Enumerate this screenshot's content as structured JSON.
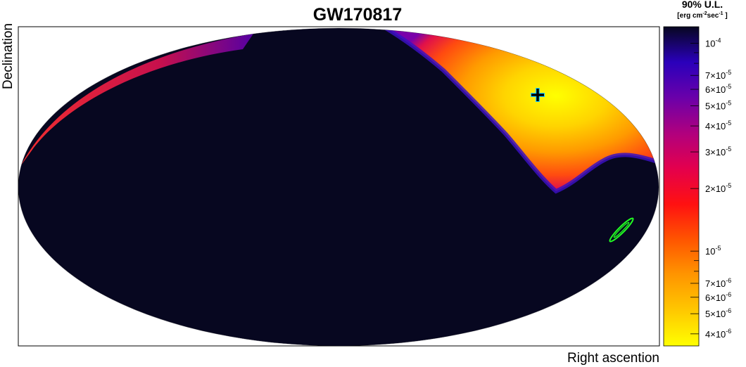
{
  "chart_data": {
    "type": "heatmap",
    "projection": "hammer-aitoff",
    "title": "GW170817",
    "xlabel": "Right ascention",
    "ylabel": "Declination",
    "colorbar": {
      "title": "90% U.L.",
      "unit_text": "[erg cm",
      "unit_exp1": "-2",
      "unit_mid": "sec",
      "unit_exp2": "-1",
      "unit_end": " ]",
      "scale": "log",
      "range": [
        3.5e-06,
        0.00012
      ],
      "colors": [
        "#ffff00",
        "#ffc800",
        "#ff9600",
        "#ff5500",
        "#ff1111",
        "#e4004d",
        "#b0007e",
        "#6a00aa",
        "#2a00bb",
        "#070720"
      ],
      "ticks": [
        {
          "value": 0.0001,
          "mantissa": "10",
          "exp": "-4",
          "labeled": true
        },
        {
          "value": 9e-05,
          "labeled": false
        },
        {
          "value": 8e-05,
          "labeled": false
        },
        {
          "value": 7e-05,
          "mantissa": "7×10",
          "exp": "-5",
          "labeled": true
        },
        {
          "value": 6e-05,
          "mantissa": "6×10",
          "exp": "-5",
          "labeled": true
        },
        {
          "value": 5e-05,
          "mantissa": "5×10",
          "exp": "-5",
          "labeled": true
        },
        {
          "value": 4e-05,
          "mantissa": "4×10",
          "exp": "-5",
          "labeled": true
        },
        {
          "value": 3e-05,
          "mantissa": "3×10",
          "exp": "-5",
          "labeled": true
        },
        {
          "value": 2e-05,
          "mantissa": "2×10",
          "exp": "-5",
          "labeled": true
        },
        {
          "value": 1e-05,
          "mantissa": "10",
          "exp": "-5",
          "labeled": true
        },
        {
          "value": 9e-06,
          "labeled": false
        },
        {
          "value": 8e-06,
          "labeled": false
        },
        {
          "value": 7e-06,
          "mantissa": "7×10",
          "exp": "-6",
          "labeled": true
        },
        {
          "value": 6e-06,
          "mantissa": "6×10",
          "exp": "-6",
          "labeled": true
        },
        {
          "value": 5e-06,
          "mantissa": "5×10",
          "exp": "-6",
          "labeled": true
        },
        {
          "value": 4e-06,
          "mantissa": "4×10",
          "exp": "-6",
          "labeled": true
        }
      ]
    },
    "background_value": 0.00012,
    "hot_region": {
      "description_value_min": 3.8e-06,
      "fades_to": 0.00012
    },
    "markers": [
      {
        "name": "source-position-cross",
        "color": "#000000",
        "accent": "#1fd0ff"
      },
      {
        "name": "gw-localization-contour",
        "color": "#22ff22"
      }
    ]
  }
}
